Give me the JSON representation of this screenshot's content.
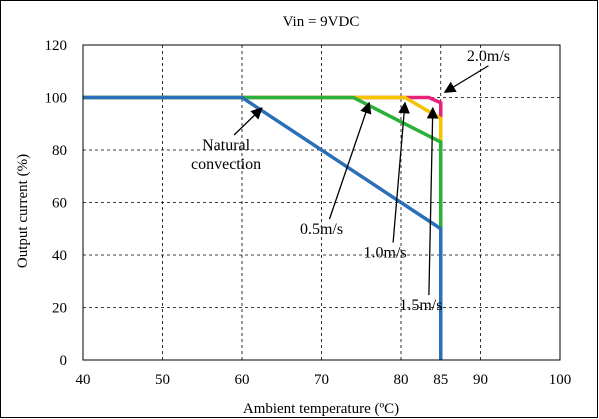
{
  "chart_data": {
    "type": "line",
    "title": "Vin = 9VDC",
    "xlabel": "Ambient temperature (ºC)",
    "ylabel": "Output current (%)",
    "xlim": [
      40,
      100
    ],
    "ylim": [
      0,
      120
    ],
    "x_ticks": [
      40,
      50,
      60,
      70,
      80,
      85,
      90,
      100
    ],
    "x_tick_labels": [
      "40",
      "50",
      "60",
      "70",
      "80",
      "85",
      "90",
      "100"
    ],
    "y_ticks": [
      0,
      20,
      40,
      60,
      80,
      100,
      120
    ],
    "y_tick_labels": [
      "0",
      "20",
      "40",
      "60",
      "80",
      "100",
      "120"
    ],
    "grid": true,
    "series": [
      {
        "name": "2.0m/s",
        "color": "#e8207a",
        "points": [
          [
            40,
            100
          ],
          [
            83.5,
            100
          ],
          [
            85,
            98
          ],
          [
            85,
            0
          ]
        ]
      },
      {
        "name": "1.5m/s",
        "color": "#f5c400",
        "points": [
          [
            40,
            100
          ],
          [
            80.5,
            100
          ],
          [
            85,
            92
          ],
          [
            85,
            0
          ]
        ]
      },
      {
        "name": "1.0m/s",
        "color": "#2bb03a",
        "points": [
          [
            40,
            100
          ],
          [
            74,
            100
          ],
          [
            85,
            83
          ],
          [
            85,
            0
          ]
        ]
      },
      {
        "name": "Natural convection",
        "color": "#2a6fb8",
        "points": [
          [
            40,
            100
          ],
          [
            60,
            100
          ],
          [
            85,
            50
          ],
          [
            85,
            0
          ]
        ]
      }
    ],
    "annotations": [
      {
        "label_lines": [
          "Natural",
          "convection"
        ],
        "text_anchor": [
          58,
          80
        ],
        "target": [
          62.5,
          96
        ]
      },
      {
        "label_lines": [
          "0.5m/s"
        ],
        "text_anchor": [
          70,
          48
        ],
        "target": [
          76,
          98
        ]
      },
      {
        "label_lines": [
          "1.0m/s"
        ],
        "text_anchor": [
          78,
          39
        ],
        "target": [
          80.5,
          98
        ]
      },
      {
        "label_lines": [
          "1.5m/s"
        ],
        "text_anchor": [
          82.5,
          19
        ],
        "target": [
          84,
          96
        ]
      },
      {
        "label_lines": [
          "2.0m/s"
        ],
        "text_anchor": [
          91,
          114
        ],
        "target": [
          85.5,
          102
        ]
      }
    ]
  }
}
